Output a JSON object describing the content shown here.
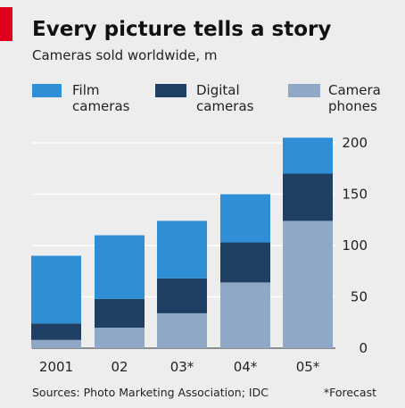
{
  "chart_data": {
    "type": "bar",
    "stacked": true,
    "title": "Every picture tells a story",
    "subtitle": "Cameras sold worldwide, m",
    "categories": [
      "2001",
      "02",
      "03*",
      "04*",
      "05*"
    ],
    "series": [
      {
        "name": "Camera phones",
        "color": "#8fa8c5",
        "values": [
          8,
          20,
          34,
          64,
          124
        ]
      },
      {
        "name": "Digital cameras",
        "color": "#1f3f64",
        "values": [
          16,
          28,
          34,
          39,
          46
        ]
      },
      {
        "name": "Film cameras",
        "color": "#2e8ed6",
        "values": [
          66,
          62,
          56,
          47,
          35
        ]
      }
    ],
    "legend": [
      {
        "label": "Film\ncameras",
        "color": "#2e8ed6"
      },
      {
        "label": "Digital\ncameras",
        "color": "#1f3f64"
      },
      {
        "label": "Camera\nphones",
        "color": "#8fa8c5"
      }
    ],
    "yticks": [
      "0",
      "50",
      "100",
      "150",
      "200"
    ],
    "ylim": [
      0,
      210
    ],
    "ylabel": "",
    "xlabel": "",
    "grid": true,
    "source": "Sources: Photo Marketing Association; IDC",
    "note": "*Forecast",
    "accent_color": "#e0001b"
  }
}
